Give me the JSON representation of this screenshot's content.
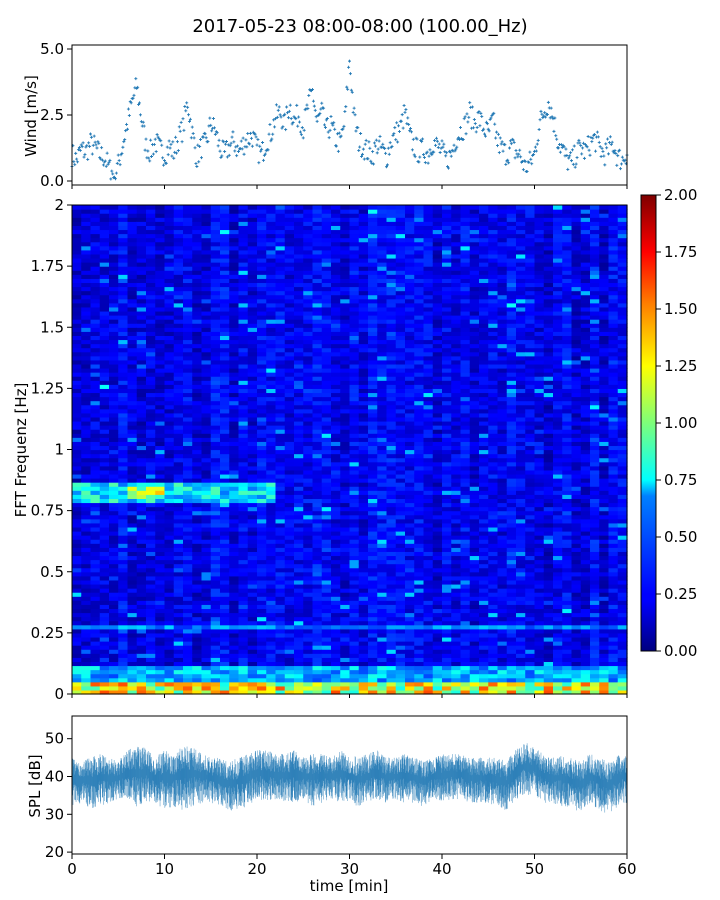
{
  "title": "2017-05-23 08:00-08:00 (100.00_Hz)",
  "chart_data": [
    {
      "type": "scatter",
      "ylabel": "Wind [m/s]",
      "xlim": [
        0,
        60
      ],
      "ylim": [
        0,
        5
      ],
      "yticks": [
        0.0,
        2.5,
        5.0
      ],
      "ytick_labels": [
        "0.0",
        "2.5",
        "5.0"
      ],
      "color": "#1f77b4",
      "marker": "+",
      "series": [
        {
          "x": [
            0,
            0.5,
            1,
            1.5,
            2,
            2.5,
            3,
            3.5,
            4,
            4.5,
            5,
            5.5,
            6,
            6.5,
            7,
            7.5,
            8,
            8.5,
            9,
            9.5,
            10,
            10.5,
            11,
            11.5,
            12,
            12.5,
            13,
            13.5,
            14,
            14.5,
            15,
            15.5,
            16,
            16.5,
            17,
            17.5,
            18,
            18.5,
            19,
            19.5,
            20,
            20.5,
            21,
            21.5,
            22,
            22.5,
            23,
            23.5,
            24,
            24.5,
            25,
            25.5,
            26,
            26.5,
            27,
            27.5,
            28,
            28.5,
            29,
            29.5,
            30,
            30.5,
            31,
            31.5,
            32,
            32.5,
            33,
            33.5,
            34,
            34.5,
            35,
            35.5,
            36,
            36.5,
            37,
            37.5,
            38,
            38.5,
            39,
            39.5,
            40,
            40.5,
            41,
            41.5,
            42,
            42.5,
            43,
            43.5,
            44,
            44.5,
            45,
            45.5,
            46,
            46.5,
            47,
            47.5,
            48,
            48.5,
            49,
            49.5,
            50,
            50.5,
            51,
            51.5,
            52,
            52.5,
            53,
            53.5,
            54,
            54.5,
            55,
            55.5,
            56,
            56.5,
            57,
            57.5,
            58,
            58.5,
            59,
            59.5,
            60
          ],
          "y": [
            1.0,
            0.8,
            1.2,
            1.1,
            1.4,
            1.3,
            1.0,
            0.9,
            0.5,
            0.2,
            0.6,
            1.4,
            2.2,
            3.0,
            3.6,
            2.4,
            1.3,
            1.1,
            1.5,
            1.2,
            1.0,
            1.3,
            1.1,
            1.6,
            2.0,
            3.0,
            1.8,
            0.9,
            1.3,
            1.4,
            2.2,
            1.9,
            1.2,
            1.0,
            1.3,
            1.5,
            1.1,
            1.4,
            1.6,
            1.7,
            1.2,
            1.0,
            1.5,
            1.8,
            2.4,
            2.6,
            2.1,
            2.9,
            2.3,
            2.5,
            2.0,
            2.8,
            3.4,
            2.2,
            2.6,
            1.9,
            2.1,
            1.6,
            1.4,
            2.3,
            4.6,
            2.4,
            1.5,
            1.3,
            1.1,
            1.0,
            1.4,
            1.2,
            0.9,
            1.5,
            1.8,
            2.0,
            2.6,
            1.7,
            1.3,
            1.1,
            1.2,
            1.0,
            1.5,
            1.3,
            1.1,
            0.8,
            1.0,
            1.6,
            1.9,
            2.1,
            2.6,
            2.2,
            2.4,
            2.0,
            1.8,
            2.3,
            1.5,
            1.2,
            1.0,
            1.3,
            1.1,
            0.9,
            0.5,
            0.7,
            1.0,
            2.1,
            2.6,
            3.0,
            2.4,
            1.6,
            1.2,
            0.8,
            0.7,
            1.0,
            1.3,
            1.1,
            1.4,
            1.6,
            1.3,
            1.0,
            1.2,
            1.4,
            0.9,
            0.8,
            1.1
          ]
        }
      ]
    },
    {
      "type": "heatmap",
      "ylabel": "FFT Frequenz [Hz]",
      "xlim": [
        0,
        60
      ],
      "ylim": [
        0,
        2
      ],
      "yticks": [
        0,
        0.25,
        0.5,
        0.75,
        1,
        1.25,
        1.5,
        1.75,
        2
      ],
      "ytick_labels": [
        "0",
        "0.25",
        "0.5",
        "0.75",
        "1",
        "1.25",
        "1.5",
        "1.75",
        "2"
      ],
      "colormap": "jet",
      "clim": [
        0,
        2
      ],
      "colorbar_ticks": [
        0.0,
        0.25,
        0.5,
        0.75,
        1.0,
        1.25,
        1.5,
        1.75,
        2.0
      ],
      "colorbar_tick_labels": [
        "0.00",
        "0.25",
        "0.50",
        "0.75",
        "1.00",
        "1.25",
        "1.50",
        "1.75",
        "2.00"
      ],
      "time_bins_min": 60,
      "freq_bins": 120,
      "freq_resolution_hz": 0.0167,
      "background_level": 0.22,
      "features": [
        {
          "freq_hz": [
            0.0,
            0.05
          ],
          "level": 1.4,
          "time_min": [
            0,
            60
          ]
        },
        {
          "freq_hz": [
            0.05,
            0.12
          ],
          "level": 0.7,
          "time_min": [
            0,
            60
          ]
        },
        {
          "freq_hz": [
            0.26,
            0.29
          ],
          "level": 0.6,
          "time_min": [
            0,
            60
          ]
        },
        {
          "freq_hz": [
            0.78,
            0.86
          ],
          "level": 0.8,
          "time_min": [
            0,
            22
          ]
        },
        {
          "freq_hz": [
            0.8,
            0.85
          ],
          "level": 1.3,
          "time_min": [
            6,
            10
          ]
        }
      ]
    },
    {
      "type": "line",
      "ylabel": "SPL [dB]",
      "xlabel": "time [min]",
      "xlim": [
        0,
        60
      ],
      "ylim": [
        19.5,
        56
      ],
      "xticks": [
        0,
        10,
        20,
        30,
        40,
        50,
        60
      ],
      "xtick_labels": [
        "0",
        "10",
        "20",
        "30",
        "40",
        "50",
        "60"
      ],
      "yticks": [
        20,
        30,
        40,
        50
      ],
      "ytick_labels": [
        "20",
        "30",
        "40",
        "50"
      ],
      "color": "#1f77b4",
      "series": [
        {
          "x": [
            0,
            1,
            2,
            3,
            4,
            5,
            6,
            7,
            8,
            9,
            10,
            11,
            12,
            13,
            14,
            15,
            16,
            17,
            18,
            19,
            20,
            21,
            22,
            23,
            24,
            25,
            26,
            27,
            28,
            29,
            30,
            31,
            32,
            33,
            34,
            35,
            36,
            37,
            38,
            39,
            40,
            41,
            42,
            43,
            44,
            45,
            46,
            47,
            48,
            49,
            50,
            51,
            52,
            53,
            54,
            55,
            56,
            57,
            58,
            59,
            60
          ],
          "y_min": [
            32,
            33,
            31,
            32,
            33,
            34,
            34,
            32,
            33,
            33,
            31,
            32,
            31,
            32,
            33,
            33,
            32,
            31,
            31,
            32,
            34,
            33,
            34,
            33,
            33,
            34,
            32,
            33,
            34,
            33,
            33,
            32,
            33,
            34,
            33,
            34,
            33,
            33,
            32,
            34,
            33,
            34,
            34,
            33,
            33,
            33,
            32,
            31,
            34,
            35,
            35,
            33,
            33,
            32,
            31,
            31,
            33,
            31,
            30,
            32,
            33
          ],
          "y_max": [
            45,
            44,
            45,
            46,
            45,
            44,
            47,
            48,
            48,
            45,
            47,
            46,
            48,
            48,
            46,
            45,
            45,
            44,
            45,
            46,
            47,
            47,
            46,
            46,
            47,
            45,
            46,
            46,
            45,
            47,
            46,
            45,
            46,
            47,
            45,
            45,
            46,
            45,
            44,
            45,
            46,
            46,
            46,
            45,
            45,
            45,
            45,
            44,
            48,
            49,
            48,
            46,
            45,
            46,
            45,
            44,
            46,
            45,
            44,
            46,
            46
          ]
        }
      ]
    }
  ]
}
